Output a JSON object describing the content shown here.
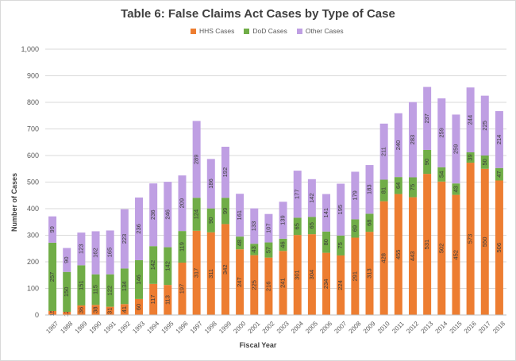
{
  "chart_data": {
    "type": "bar",
    "stacked": true,
    "title": "Table 6: False Claims Act Cases by Type of Case",
    "xlabel": "Fiscal Year",
    "ylabel": "Number of Cases",
    "ylim": [
      0,
      1000
    ],
    "yticks": [
      "0",
      "100",
      "200",
      "300",
      "400",
      "500",
      "600",
      "700",
      "800",
      "900",
      "1,000"
    ],
    "grid": true,
    "legend_position": "top",
    "categories": [
      "1987",
      "1988",
      "1989",
      "1990",
      "1991",
      "1992",
      "1993",
      "1994",
      "1995",
      "1996",
      "1997",
      "1998",
      "1999",
      "2000",
      "2001",
      "2002",
      "2003",
      "2004",
      "2005",
      "2006",
      "2007",
      "2008",
      "2009",
      "2010",
      "2011",
      "2012",
      "2013",
      "2014",
      "2015",
      "2016",
      "2017",
      "2018"
    ],
    "series": [
      {
        "name": "HHS Cases",
        "color": "#ed7d31",
        "values": [
          15,
          12,
          36,
          38,
          31,
          41,
          60,
          117,
          113,
          197,
          317,
          311,
          342,
          247,
          225,
          216,
          241,
          301,
          304,
          234,
          224,
          291,
          313,
          428,
          455,
          443,
          531,
          502,
          452,
          573,
          550,
          506
        ]
      },
      {
        "name": "DoD Cases",
        "color": "#70ad47",
        "values": [
          257,
          150,
          151,
          115,
          122,
          134,
          146,
          142,
          142,
          119,
          124,
          90,
          99,
          48,
          43,
          57,
          46,
          65,
          65,
          80,
          75,
          69,
          68,
          81,
          64,
          75,
          90,
          54,
          43,
          39,
          50,
          47
        ]
      },
      {
        "name": "Other Cases",
        "color": "#bf9fe3",
        "values": [
          99,
          90,
          123,
          162,
          165,
          223,
          236,
          236,
          246,
          209,
          289,
          186,
          192,
          161,
          133,
          107,
          139,
          177,
          142,
          141,
          195,
          179,
          183,
          211,
          240,
          283,
          237,
          259,
          259,
          244,
          225,
          214
        ]
      }
    ]
  }
}
